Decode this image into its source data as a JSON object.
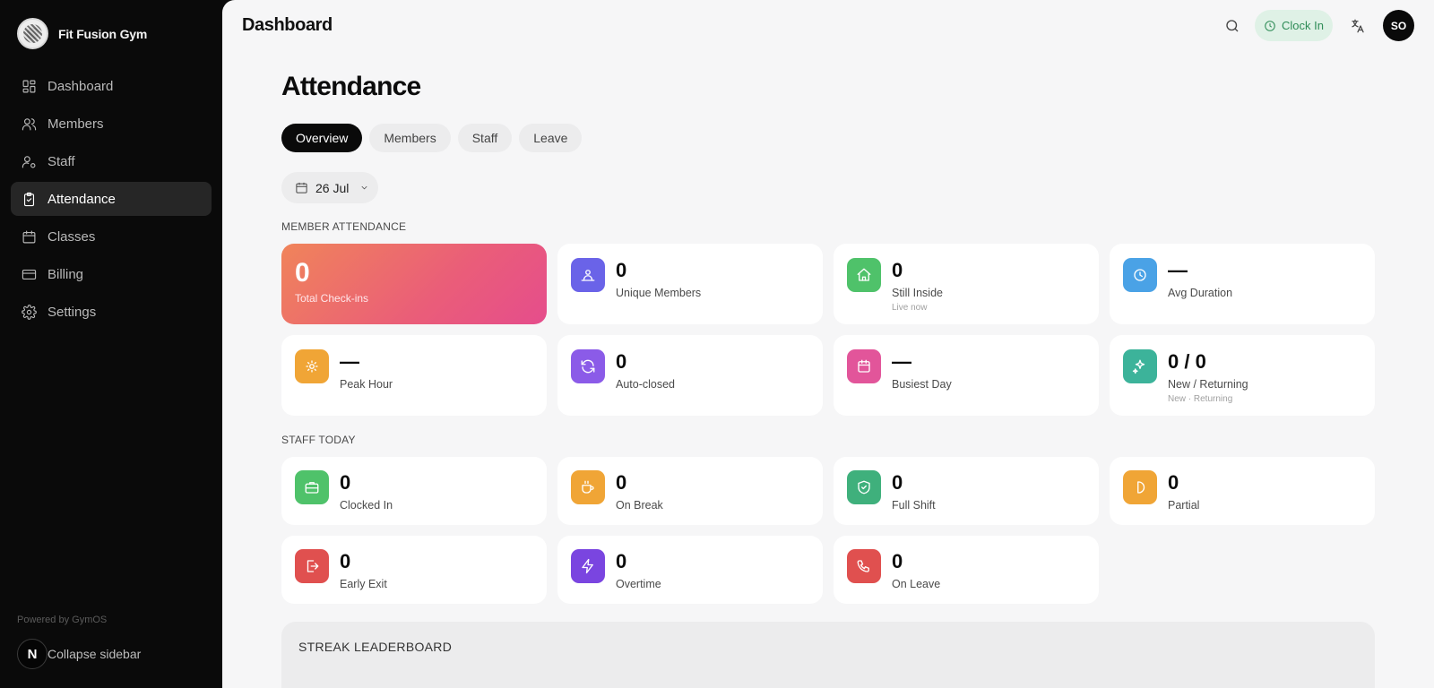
{
  "brand": {
    "name": "Fit Fusion Gym"
  },
  "sidebar": {
    "items": [
      {
        "label": "Dashboard",
        "icon": "dashboard-icon"
      },
      {
        "label": "Members",
        "icon": "users-icon"
      },
      {
        "label": "Staff",
        "icon": "user-cog-icon"
      },
      {
        "label": "Attendance",
        "icon": "clipboard-check-icon",
        "active": true
      },
      {
        "label": "Classes",
        "icon": "calendar-icon"
      },
      {
        "label": "Billing",
        "icon": "credit-card-icon"
      },
      {
        "label": "Settings",
        "icon": "gear-icon"
      }
    ],
    "powered_by": "Powered by GymOS",
    "collapse_label": "Collapse sidebar",
    "collapse_badge": "N"
  },
  "topbar": {
    "title": "Dashboard",
    "clock_in_label": "Clock In",
    "avatar_initials": "SO"
  },
  "page": {
    "title": "Attendance",
    "tabs": [
      {
        "label": "Overview",
        "active": true
      },
      {
        "label": "Members"
      },
      {
        "label": "Staff"
      },
      {
        "label": "Leave"
      }
    ],
    "date": "26 Jul"
  },
  "member_attendance": {
    "heading": "MEMBER ATTENDANCE",
    "cards": [
      {
        "value": "0",
        "label": "Total Check-ins",
        "icon": "",
        "color": "#ee6f6b"
      },
      {
        "value": "0",
        "label": "Unique Members",
        "icon": "user-group-icon",
        "color": "#6a63e8"
      },
      {
        "value": "0",
        "label": "Still Inside",
        "sub": "Live now",
        "icon": "home-icon",
        "color": "#4fc26a"
      },
      {
        "value": "—",
        "label": "Avg Duration",
        "icon": "clock-icon",
        "color": "#4aa2e6"
      },
      {
        "value": "—",
        "label": "Peak Hour",
        "icon": "sun-icon",
        "color": "#f0a536"
      },
      {
        "value": "0",
        "label": "Auto-closed",
        "icon": "refresh-icon",
        "color": "#8b5be8"
      },
      {
        "value": "—",
        "label": "Busiest Day",
        "icon": "calendar-icon",
        "color": "#e2559a"
      },
      {
        "value": "0 / 0",
        "label": "New / Returning",
        "sub": "New · Returning",
        "icon": "sparkles-icon",
        "color": "#3cb39a"
      }
    ]
  },
  "staff_today": {
    "heading": "STAFF TODAY",
    "cards": [
      {
        "value": "0",
        "label": "Clocked In",
        "icon": "briefcase-icon",
        "color": "#4fc26a"
      },
      {
        "value": "0",
        "label": "On Break",
        "icon": "coffee-icon",
        "color": "#f0a536"
      },
      {
        "value": "0",
        "label": "Full Shift",
        "icon": "shield-check-icon",
        "color": "#3fb07c"
      },
      {
        "value": "0",
        "label": "Partial",
        "icon": "half-circle-icon",
        "color": "#f0a536"
      },
      {
        "value": "0",
        "label": "Early Exit",
        "icon": "log-out-icon",
        "color": "#e0504f"
      },
      {
        "value": "0",
        "label": "Overtime",
        "icon": "bolt-icon",
        "color": "#7a45e0"
      },
      {
        "value": "0",
        "label": "On Leave",
        "icon": "phone-icon",
        "color": "#e0504f"
      }
    ]
  },
  "leaderboard": {
    "title": "STREAK LEADERBOARD"
  }
}
